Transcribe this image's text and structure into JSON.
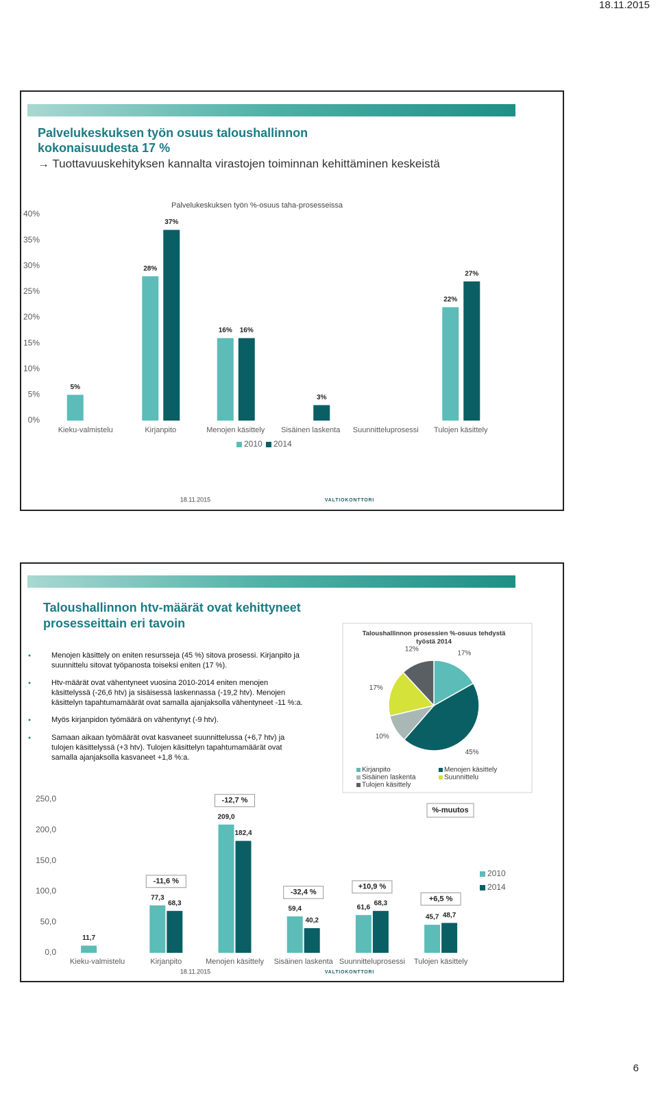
{
  "header": {
    "date": "18.11.2015",
    "page_number": 6
  },
  "slides": [
    {
      "title_lines": [
        "Palvelukeskuksen työn osuus taloushallinnon",
        "kokonaisuudesta 17 %",
        "→ Tuottavuuskehityksen kannalta virastojen toiminnan kehittäminen keskeistä"
      ],
      "footer_date": "18.11.2015",
      "logo": "VALTIOKONTTORI"
    },
    {
      "title_lines": [
        "Taloushallinnon htv-määrät ovat kehittyneet",
        "prosesseittain eri tavoin"
      ],
      "bullets": [
        [
          "Menojen käsittely on eniten resursseja (45 %) sitova prosessi. Kirjanpito ja",
          "suunnittelu sitovat työpanosta toiseksi eniten (17 %)."
        ],
        [
          "Htv-määrät ovat vähentyneet vuosina 2010-2014 eniten menojen",
          "käsittelyssä (-26,6 htv) ja sisäisessä laskennassa (-19,2 htv). Menojen",
          "käsittelyn tapahtumamäärät ovat samalla ajanjaksolla vähentyneet -11 %:a."
        ],
        [
          "Myös kirjanpidon työmäärä on vähentynyt (-9 htv)."
        ],
        [
          "Samaan aikaan työmäärät ovat kasvaneet suunnittelussa (+6,7 htv) ja",
          "tulojen käsittelyssä (+3 htv). Tulojen käsittelyn tapahtumamäärät ovat",
          "samalla ajanjaksolla kasvaneet +1,8 %:a."
        ]
      ],
      "footer_date": "18.11.2015",
      "logo": "VALTIOKONTTORI"
    }
  ],
  "chart_data": [
    {
      "type": "bar",
      "title": "Palvelukeskuksen työn %-osuus taha-prosesseissa",
      "categories": [
        "Kieku-valmistelu",
        "Kirjanpito",
        "Menojen käsittely",
        "Sisäinen laskenta",
        "Suunnitteluprosessi",
        "Tulojen käsittely"
      ],
      "series": [
        {
          "name": "2010",
          "color": "#5bbcb8",
          "values": [
            5,
            28,
            16,
            null,
            null,
            22
          ],
          "value_labels": [
            "5%",
            "28%",
            "16%",
            null,
            null,
            "22%"
          ]
        },
        {
          "name": "2014",
          "color": "#0a5f64",
          "values": [
            null,
            37,
            16,
            3,
            null,
            27
          ],
          "value_labels": [
            null,
            "37%",
            "16%",
            "3%",
            null,
            "27%"
          ]
        }
      ],
      "ylim": [
        0,
        40
      ],
      "yticks": [
        {
          "value": 0,
          "label": "0%"
        },
        {
          "value": 5,
          "label": "5%"
        },
        {
          "value": 10,
          "label": "10%"
        },
        {
          "value": 15,
          "label": "15%"
        },
        {
          "value": 20,
          "label": "20%"
        },
        {
          "value": 25,
          "label": "25%"
        },
        {
          "value": 30,
          "label": "30%"
        },
        {
          "value": 35,
          "label": "35%"
        },
        {
          "value": 40,
          "label": "40%"
        }
      ],
      "grid": false,
      "legend": "bottom"
    },
    {
      "type": "pie",
      "title": [
        "Taloushallinnon prosessien %-osuus tehdystä",
        "työstä 2014"
      ],
      "categories": [
        "Kirjanpito",
        "Menojen käsittely",
        "Sisäinen laskenta",
        "Suunnittelu",
        "Tulojen käsittely"
      ],
      "values": [
        17,
        45,
        10,
        17,
        12
      ],
      "value_labels": [
        "17%",
        "45%",
        "10%",
        "17%",
        "12%"
      ],
      "colors": [
        "#5bbcb8",
        "#0a5f64",
        "#a9b8b4",
        "#d4e23a",
        "#5a5f63"
      ],
      "legend": "bottom"
    },
    {
      "type": "bar",
      "categories": [
        "Kieku-valmistelu",
        "Kirjanpito",
        "Menojen käsittely",
        "Sisäinen laskenta",
        "Suunnitteluprosessi",
        "Tulojen käsittely"
      ],
      "series": [
        {
          "name": "2010",
          "color": "#5bbcb8",
          "values": [
            11.7,
            77.3,
            209.0,
            59.4,
            61.6,
            45.7
          ],
          "value_labels": [
            "11,7",
            "77,3",
            "209,0",
            "59,4",
            "61,6",
            "45,7"
          ]
        },
        {
          "name": "2014",
          "color": "#0a5f64",
          "values": [
            null,
            68.3,
            182.4,
            40.2,
            68.3,
            48.7
          ],
          "value_labels": [
            null,
            "68,3",
            "182,4",
            "40,2",
            "68,3",
            "48,7"
          ]
        }
      ],
      "change_labels": [
        null,
        "-11,6 %",
        "-12,7 %",
        "-32,4 %",
        "+10,9 %",
        "+6,5 %"
      ],
      "annotation": "%-muutos",
      "ylim": [
        0,
        250
      ],
      "yticks": [
        {
          "value": 0,
          "label": "0,0"
        },
        {
          "value": 50,
          "label": "50,0"
        },
        {
          "value": 100,
          "label": "100,0"
        },
        {
          "value": 150,
          "label": "150,0"
        },
        {
          "value": 200,
          "label": "200,0"
        },
        {
          "value": 250,
          "label": "250,0"
        }
      ],
      "grid": false,
      "legend": "right"
    }
  ]
}
